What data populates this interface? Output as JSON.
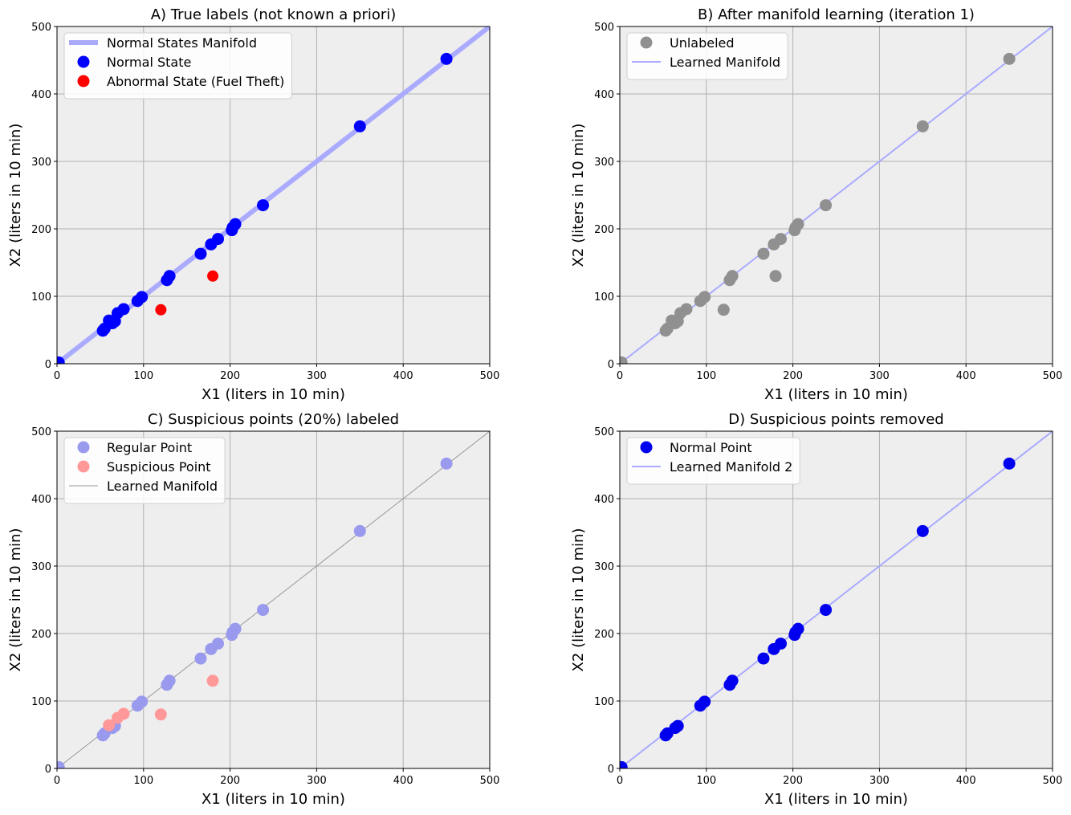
{
  "chart_data": [
    {
      "type": "scatter",
      "title": "A) True labels (not known a priori)",
      "xlabel": "X1 (liters in 10 min)",
      "ylabel": "X2 (liters in 10 min)",
      "xlim": [
        0,
        500
      ],
      "ylim": [
        0,
        500
      ],
      "xticks": [
        0,
        100,
        200,
        300,
        400,
        500
      ],
      "yticks": [
        0,
        100,
        200,
        300,
        400,
        500
      ],
      "grid": true,
      "legend_position": "top-left",
      "lines": [
        {
          "name": "Normal States Manifold",
          "x": [
            0,
            500
          ],
          "y": [
            0,
            500
          ],
          "color": "#aaaaff",
          "style": "thick"
        }
      ],
      "series": [
        {
          "name": "Normal State",
          "color": "#0000ff",
          "points": [
            [
              2,
              2
            ],
            [
              53,
              49
            ],
            [
              55,
              52
            ],
            [
              60,
              64
            ],
            [
              64,
              60
            ],
            [
              67,
              63
            ],
            [
              70,
              75
            ],
            [
              77,
              81
            ],
            [
              93,
              93
            ],
            [
              98,
              99
            ],
            [
              127,
              124
            ],
            [
              130,
              130
            ],
            [
              166,
              163
            ],
            [
              178,
              177
            ],
            [
              186,
              185
            ],
            [
              202,
              198
            ],
            [
              203,
              202
            ],
            [
              206,
              207
            ],
            [
              238,
              235
            ],
            [
              350,
              352
            ],
            [
              450,
              452
            ]
          ]
        },
        {
          "name": "Abnormal State (Fuel Theft)",
          "color": "#ff0000",
          "small": true,
          "points": [
            [
              120,
              80
            ],
            [
              180,
              130
            ]
          ]
        }
      ],
      "legend_order": [
        "line0",
        "series0",
        "series1"
      ]
    },
    {
      "type": "scatter",
      "title": "B) After manifold learning (iteration 1)",
      "xlabel": "X1 (liters in 10 min)",
      "ylabel": "X2 (liters in 10 min)",
      "xlim": [
        0,
        500
      ],
      "ylim": [
        0,
        500
      ],
      "xticks": [
        0,
        100,
        200,
        300,
        400,
        500
      ],
      "yticks": [
        0,
        100,
        200,
        300,
        400,
        500
      ],
      "grid": true,
      "legend_position": "top-left",
      "lines": [
        {
          "name": "Learned Manifold",
          "x": [
            0,
            500
          ],
          "y": [
            0,
            500
          ],
          "color": "#aaaaff",
          "style": "medium"
        }
      ],
      "series": [
        {
          "name": "Unlabeled",
          "color": "#909090",
          "points": [
            [
              2,
              2
            ],
            [
              53,
              49
            ],
            [
              55,
              52
            ],
            [
              60,
              64
            ],
            [
              64,
              60
            ],
            [
              67,
              63
            ],
            [
              70,
              75
            ],
            [
              77,
              81
            ],
            [
              93,
              93
            ],
            [
              98,
              99
            ],
            [
              127,
              124
            ],
            [
              130,
              130
            ],
            [
              166,
              163
            ],
            [
              178,
              177
            ],
            [
              186,
              185
            ],
            [
              202,
              198
            ],
            [
              203,
              202
            ],
            [
              206,
              207
            ],
            [
              238,
              235
            ],
            [
              350,
              352
            ],
            [
              450,
              452
            ],
            [
              120,
              80
            ],
            [
              180,
              130
            ]
          ]
        }
      ],
      "legend_order": [
        "series0",
        "line0"
      ]
    },
    {
      "type": "scatter",
      "title": "C) Suspicious points (20%) labeled",
      "xlabel": "X1 (liters in 10 min)",
      "ylabel": "X2 (liters in 10 min)",
      "xlim": [
        0,
        500
      ],
      "ylim": [
        0,
        500
      ],
      "xticks": [
        0,
        100,
        200,
        300,
        400,
        500
      ],
      "yticks": [
        0,
        100,
        200,
        300,
        400,
        500
      ],
      "grid": true,
      "legend_position": "top-left",
      "lines": [
        {
          "name": "Learned Manifold",
          "x": [
            0,
            500
          ],
          "y": [
            0,
            500
          ],
          "color": "#999999",
          "style": "thin"
        }
      ],
      "series": [
        {
          "name": "Regular Point",
          "color": "#9999ee",
          "points": [
            [
              2,
              2
            ],
            [
              53,
              49
            ],
            [
              55,
              52
            ],
            [
              64,
              60
            ],
            [
              67,
              63
            ],
            [
              93,
              93
            ],
            [
              98,
              99
            ],
            [
              127,
              124
            ],
            [
              130,
              130
            ],
            [
              166,
              163
            ],
            [
              178,
              177
            ],
            [
              186,
              185
            ],
            [
              202,
              198
            ],
            [
              203,
              202
            ],
            [
              206,
              207
            ],
            [
              238,
              235
            ],
            [
              350,
              352
            ],
            [
              450,
              452
            ]
          ]
        },
        {
          "name": "Suspicious Point",
          "color": "#ff9999",
          "points": [
            [
              60,
              64
            ],
            [
              70,
              75
            ],
            [
              77,
              81
            ],
            [
              120,
              80
            ],
            [
              180,
              130
            ]
          ]
        }
      ],
      "legend_order": [
        "series0",
        "series1",
        "line0"
      ]
    },
    {
      "type": "scatter",
      "title": "D) Suspicious points removed",
      "xlabel": "X1 (liters in 10 min)",
      "ylabel": "X2 (liters in 10 min)",
      "xlim": [
        0,
        500
      ],
      "ylim": [
        0,
        500
      ],
      "xticks": [
        0,
        100,
        200,
        300,
        400,
        500
      ],
      "yticks": [
        0,
        100,
        200,
        300,
        400,
        500
      ],
      "grid": true,
      "legend_position": "top-left",
      "lines": [
        {
          "name": "Learned Manifold 2",
          "x": [
            0,
            500
          ],
          "y": [
            0,
            500
          ],
          "color": "#aaaaff",
          "style": "medium"
        }
      ],
      "series": [
        {
          "name": "Normal Point",
          "color": "#0000ee",
          "points": [
            [
              2,
              2
            ],
            [
              53,
              49
            ],
            [
              55,
              52
            ],
            [
              64,
              60
            ],
            [
              67,
              63
            ],
            [
              93,
              93
            ],
            [
              98,
              99
            ],
            [
              127,
              124
            ],
            [
              130,
              130
            ],
            [
              166,
              163
            ],
            [
              178,
              177
            ],
            [
              186,
              185
            ],
            [
              202,
              198
            ],
            [
              203,
              202
            ],
            [
              206,
              207
            ],
            [
              238,
              235
            ],
            [
              350,
              352
            ],
            [
              450,
              452
            ]
          ]
        }
      ],
      "legend_order": [
        "series0",
        "line0"
      ]
    }
  ]
}
